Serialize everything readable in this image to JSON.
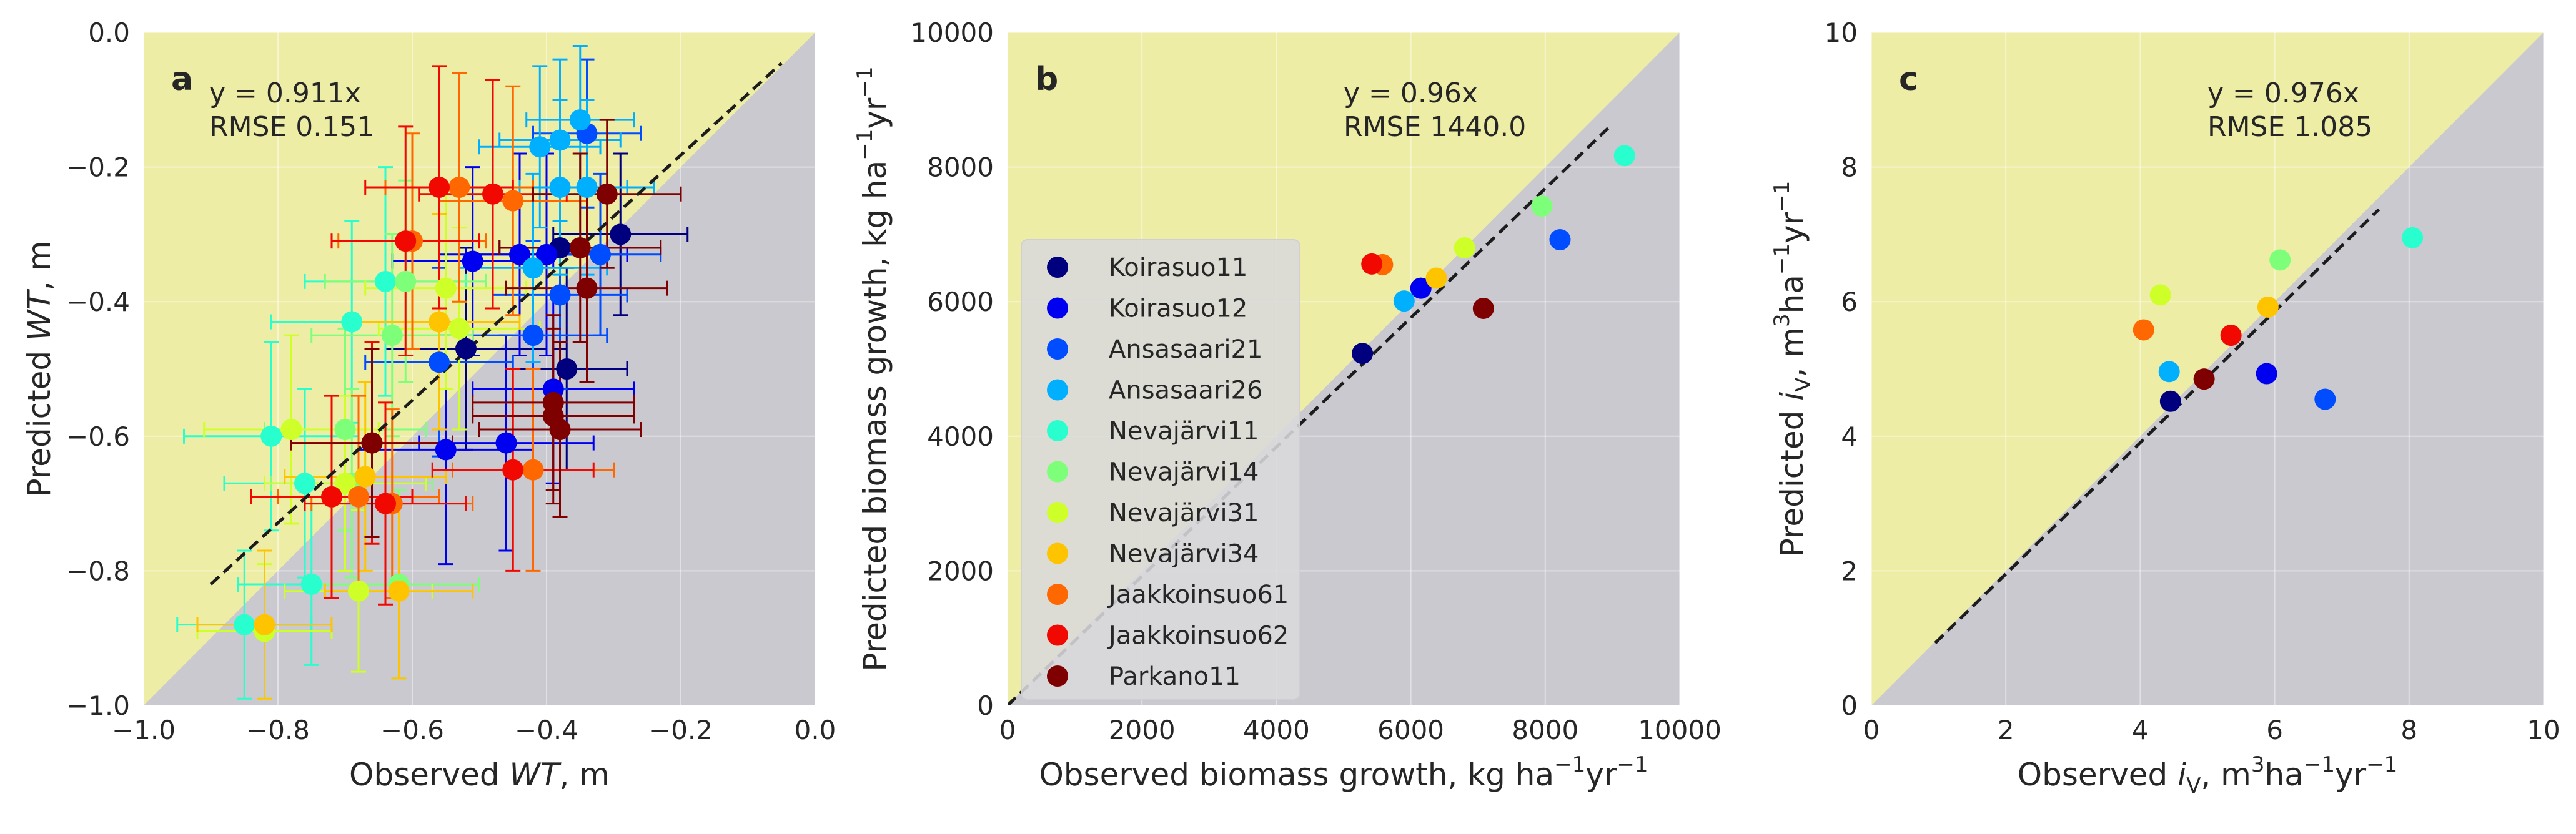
{
  "colors": {
    "face_above": "#eeeda6",
    "face_below": "#c9c9cf",
    "grid": "#ffffff",
    "fit_line": "#1c1c1c",
    "identity_line": "#ffffff"
  },
  "stand_colors": {
    "Koirasuo11": "#00007f",
    "Koirasuo12": "#0000f1",
    "Ansasaari21": "#004cff",
    "Ansasaari26": "#00b0ff",
    "Nevajärvi11": "#29ffce",
    "Nevajärvi14": "#7dff7a",
    "Nevajärvi31": "#ceff29",
    "Nevajärvi34": "#ffc400",
    "Jaakkoinsuo61": "#ff6800",
    "Jaakkoinsuo62": "#f10800",
    "Parkano11": "#7f0000"
  },
  "chart_data": [
    {
      "type": "scatter",
      "panel_label": "a",
      "xlabel_parts": [
        "Observed ",
        "WT",
        ", m"
      ],
      "ylabel_parts": [
        "Predicted ",
        "WT",
        ", m"
      ],
      "xlim": [
        -1.0,
        0.0
      ],
      "ylim": [
        -1.0,
        0.0
      ],
      "xticks": [
        -1.0,
        -0.8,
        -0.6,
        -0.4,
        -0.2,
        0.0
      ],
      "yticks": [
        -1.0,
        -0.8,
        -0.6,
        -0.4,
        -0.2,
        0.0
      ],
      "xtick_labels": [
        "−1.0",
        "−0.8",
        "−0.6",
        "−0.4",
        "−0.2",
        "0.0"
      ],
      "ytick_labels": [
        "−1.0",
        "−0.8",
        "−0.6",
        "−0.4",
        "−0.2",
        "0.0"
      ],
      "grid": true,
      "fit": {
        "slope": 0.911,
        "x_range": [
          -0.9,
          -0.05
        ]
      },
      "annotation": [
        "y = 0.911x",
        "RMSE 0.151"
      ],
      "points": [
        {
          "stand": "Koirasuo11",
          "x": -0.29,
          "y": -0.3,
          "xerr": 0.1,
          "yerr": 0.12
        },
        {
          "stand": "Koirasuo11",
          "x": -0.38,
          "y": -0.32,
          "xerr": 0.09,
          "yerr": 0.15
        },
        {
          "stand": "Koirasuo11",
          "x": -0.37,
          "y": -0.5,
          "xerr": 0.09,
          "yerr": 0.15
        },
        {
          "stand": "Koirasuo11",
          "x": -0.52,
          "y": -0.47,
          "xerr": 0.12,
          "yerr": 0.15
        },
        {
          "stand": "Koirasuo12",
          "x": -0.46,
          "y": -0.61,
          "xerr": 0.13,
          "yerr": 0.16
        },
        {
          "stand": "Koirasuo12",
          "x": -0.55,
          "y": -0.62,
          "xerr": 0.13,
          "yerr": 0.17
        },
        {
          "stand": "Koirasuo12",
          "x": -0.44,
          "y": -0.33,
          "xerr": 0.12,
          "yerr": 0.15
        },
        {
          "stand": "Koirasuo12",
          "x": -0.4,
          "y": -0.33,
          "xerr": 0.12,
          "yerr": 0.15
        },
        {
          "stand": "Koirasuo12",
          "x": -0.51,
          "y": -0.34,
          "xerr": 0.12,
          "yerr": 0.14
        },
        {
          "stand": "Koirasuo12",
          "x": -0.39,
          "y": -0.53,
          "xerr": 0.12,
          "yerr": 0.14
        },
        {
          "stand": "Ansasaari21",
          "x": -0.56,
          "y": -0.49,
          "xerr": 0.11,
          "yerr": 0.14
        },
        {
          "stand": "Ansasaari21",
          "x": -0.34,
          "y": -0.15,
          "xerr": 0.08,
          "yerr": 0.11
        },
        {
          "stand": "Ansasaari21",
          "x": -0.38,
          "y": -0.39,
          "xerr": 0.1,
          "yerr": 0.14
        },
        {
          "stand": "Ansasaari21",
          "x": -0.42,
          "y": -0.45,
          "xerr": 0.11,
          "yerr": 0.14
        },
        {
          "stand": "Ansasaari21",
          "x": -0.32,
          "y": -0.33,
          "xerr": 0.09,
          "yerr": 0.12
        },
        {
          "stand": "Ansasaari26",
          "x": -0.38,
          "y": -0.16,
          "xerr": 0.09,
          "yerr": 0.12
        },
        {
          "stand": "Ansasaari26",
          "x": -0.35,
          "y": -0.13,
          "xerr": 0.08,
          "yerr": 0.11
        },
        {
          "stand": "Ansasaari26",
          "x": -0.41,
          "y": -0.17,
          "xerr": 0.09,
          "yerr": 0.12
        },
        {
          "stand": "Ansasaari26",
          "x": -0.34,
          "y": -0.23,
          "xerr": 0.1,
          "yerr": 0.13
        },
        {
          "stand": "Ansasaari26",
          "x": -0.42,
          "y": -0.35,
          "xerr": 0.11,
          "yerr": 0.14
        },
        {
          "stand": "Ansasaari26",
          "x": -0.38,
          "y": -0.23,
          "xerr": 0.1,
          "yerr": 0.13
        },
        {
          "stand": "Nevajärvi11",
          "x": -0.81,
          "y": -0.6,
          "xerr": 0.13,
          "yerr": 0.14
        },
        {
          "stand": "Nevajärvi11",
          "x": -0.76,
          "y": -0.67,
          "xerr": 0.12,
          "yerr": 0.14
        },
        {
          "stand": "Nevajärvi11",
          "x": -0.75,
          "y": -0.82,
          "xerr": 0.11,
          "yerr": 0.12
        },
        {
          "stand": "Nevajärvi11",
          "x": -0.85,
          "y": -0.88,
          "xerr": 0.1,
          "yerr": 0.11
        },
        {
          "stand": "Nevajärvi11",
          "x": -0.69,
          "y": -0.43,
          "xerr": 0.12,
          "yerr": 0.15
        },
        {
          "stand": "Nevajärvi11",
          "x": -0.64,
          "y": -0.37,
          "xerr": 0.12,
          "yerr": 0.17
        },
        {
          "stand": "Nevajärvi14",
          "x": -0.7,
          "y": -0.59,
          "xerr": 0.12,
          "yerr": 0.15
        },
        {
          "stand": "Nevajärvi14",
          "x": -0.63,
          "y": -0.45,
          "xerr": 0.12,
          "yerr": 0.15
        },
        {
          "stand": "Nevajärvi14",
          "x": -0.61,
          "y": -0.37,
          "xerr": 0.12,
          "yerr": 0.15
        },
        {
          "stand": "Nevajärvi14",
          "x": -0.69,
          "y": -0.67,
          "xerr": 0.12,
          "yerr": 0.14
        },
        {
          "stand": "Nevajärvi14",
          "x": -0.62,
          "y": -0.82,
          "xerr": 0.12,
          "yerr": 0.14
        },
        {
          "stand": "Nevajärvi31",
          "x": -0.78,
          "y": -0.59,
          "xerr": 0.13,
          "yerr": 0.14
        },
        {
          "stand": "Nevajärvi31",
          "x": -0.82,
          "y": -0.89,
          "xerr": 0.1,
          "yerr": 0.1
        },
        {
          "stand": "Nevajärvi31",
          "x": -0.7,
          "y": -0.67,
          "xerr": 0.12,
          "yerr": 0.13
        },
        {
          "stand": "Nevajärvi31",
          "x": -0.55,
          "y": -0.38,
          "xerr": 0.12,
          "yerr": 0.15
        },
        {
          "stand": "Nevajärvi31",
          "x": -0.53,
          "y": -0.44,
          "xerr": 0.12,
          "yerr": 0.15
        },
        {
          "stand": "Nevajärvi31",
          "x": -0.68,
          "y": -0.83,
          "xerr": 0.11,
          "yerr": 0.12
        },
        {
          "stand": "Nevajärvi34",
          "x": -0.82,
          "y": -0.88,
          "xerr": 0.1,
          "yerr": 0.11
        },
        {
          "stand": "Nevajärvi34",
          "x": -0.67,
          "y": -0.66,
          "xerr": 0.12,
          "yerr": 0.14
        },
        {
          "stand": "Nevajärvi34",
          "x": -0.62,
          "y": -0.83,
          "xerr": 0.11,
          "yerr": 0.13
        },
        {
          "stand": "Nevajärvi34",
          "x": -0.53,
          "y": -0.23,
          "xerr": 0.11,
          "yerr": 0.17
        },
        {
          "stand": "Nevajärvi34",
          "x": -0.56,
          "y": -0.43,
          "xerr": 0.12,
          "yerr": 0.16
        },
        {
          "stand": "Jaakkoinsuo61",
          "x": -0.6,
          "y": -0.31,
          "xerr": 0.11,
          "yerr": 0.16
        },
        {
          "stand": "Jaakkoinsuo61",
          "x": -0.53,
          "y": -0.23,
          "xerr": 0.11,
          "yerr": 0.17
        },
        {
          "stand": "Jaakkoinsuo61",
          "x": -0.68,
          "y": -0.69,
          "xerr": 0.12,
          "yerr": 0.15
        },
        {
          "stand": "Jaakkoinsuo61",
          "x": -0.63,
          "y": -0.7,
          "xerr": 0.12,
          "yerr": 0.14
        },
        {
          "stand": "Jaakkoinsuo61",
          "x": -0.42,
          "y": -0.65,
          "xerr": 0.12,
          "yerr": 0.15
        },
        {
          "stand": "Jaakkoinsuo61",
          "x": -0.45,
          "y": -0.25,
          "xerr": 0.11,
          "yerr": 0.17
        },
        {
          "stand": "Jaakkoinsuo62",
          "x": -0.61,
          "y": -0.31,
          "xerr": 0.11,
          "yerr": 0.17
        },
        {
          "stand": "Jaakkoinsuo62",
          "x": -0.56,
          "y": -0.23,
          "xerr": 0.11,
          "yerr": 0.18
        },
        {
          "stand": "Jaakkoinsuo62",
          "x": -0.72,
          "y": -0.69,
          "xerr": 0.12,
          "yerr": 0.15
        },
        {
          "stand": "Jaakkoinsuo62",
          "x": -0.64,
          "y": -0.7,
          "xerr": 0.12,
          "yerr": 0.15
        },
        {
          "stand": "Jaakkoinsuo62",
          "x": -0.66,
          "y": -0.61,
          "xerr": 0.12,
          "yerr": 0.15
        },
        {
          "stand": "Jaakkoinsuo62",
          "x": -0.48,
          "y": -0.24,
          "xerr": 0.11,
          "yerr": 0.17
        },
        {
          "stand": "Jaakkoinsuo62",
          "x": -0.45,
          "y": -0.65,
          "xerr": 0.12,
          "yerr": 0.15
        },
        {
          "stand": "Parkano11",
          "x": -0.31,
          "y": -0.24,
          "xerr": 0.11,
          "yerr": 0.11
        },
        {
          "stand": "Parkano11",
          "x": -0.34,
          "y": -0.38,
          "xerr": 0.12,
          "yerr": 0.14
        },
        {
          "stand": "Parkano11",
          "x": -0.39,
          "y": -0.55,
          "xerr": 0.12,
          "yerr": 0.13
        },
        {
          "stand": "Parkano11",
          "x": -0.38,
          "y": -0.59,
          "xerr": 0.12,
          "yerr": 0.13
        },
        {
          "stand": "Parkano11",
          "x": -0.39,
          "y": -0.57,
          "xerr": 0.12,
          "yerr": 0.13
        },
        {
          "stand": "Parkano11",
          "x": -0.35,
          "y": -0.32,
          "xerr": 0.12,
          "yerr": 0.14
        },
        {
          "stand": "Parkano11",
          "x": -0.66,
          "y": -0.61,
          "xerr": 0.12,
          "yerr": 0.14
        }
      ]
    },
    {
      "type": "scatter",
      "panel_label": "b",
      "xlabel_parts": [
        "Observed biomass growth, kg ha",
        "−1",
        "yr",
        "−1"
      ],
      "ylabel_parts": [
        "Predicted biomass growth, kg ha",
        "−1",
        "yr",
        "−1"
      ],
      "xlim": [
        0,
        10000
      ],
      "ylim": [
        0,
        10000
      ],
      "xticks": [
        0,
        2000,
        4000,
        6000,
        8000,
        10000
      ],
      "yticks": [
        0,
        2000,
        4000,
        6000,
        8000,
        10000
      ],
      "xtick_labels": [
        "0",
        "2000",
        "4000",
        "6000",
        "8000",
        "10000"
      ],
      "ytick_labels": [
        "0",
        "2000",
        "4000",
        "6000",
        "8000",
        "10000"
      ],
      "grid": true,
      "fit": {
        "slope": 0.96,
        "x_range": [
          0,
          8950
        ]
      },
      "annotation": [
        "y = 0.96x",
        "RMSE 1440.0"
      ],
      "legend": {
        "placement": "lower-left",
        "entries": [
          "Koirasuo11",
          "Koirasuo12",
          "Ansasaari21",
          "Ansasaari26",
          "Nevajärvi11",
          "Nevajärvi14",
          "Nevajärvi31",
          "Nevajärvi34",
          "Jaakkoinsuo61",
          "Jaakkoinsuo62",
          "Parkano11"
        ]
      },
      "points": [
        {
          "stand": "Koirasuo11",
          "x": 5280,
          "y": 5230
        },
        {
          "stand": "Koirasuo12",
          "x": 6150,
          "y": 6200
        },
        {
          "stand": "Ansasaari21",
          "x": 8220,
          "y": 6920
        },
        {
          "stand": "Ansasaari26",
          "x": 5900,
          "y": 6010
        },
        {
          "stand": "Nevajärvi11",
          "x": 9180,
          "y": 8170
        },
        {
          "stand": "Nevajärvi14",
          "x": 7950,
          "y": 7420
        },
        {
          "stand": "Nevajärvi31",
          "x": 6800,
          "y": 6800
        },
        {
          "stand": "Nevajärvi34",
          "x": 6380,
          "y": 6350
        },
        {
          "stand": "Jaakkoinsuo61",
          "x": 5580,
          "y": 6550
        },
        {
          "stand": "Jaakkoinsuo62",
          "x": 5420,
          "y": 6560
        },
        {
          "stand": "Parkano11",
          "x": 7080,
          "y": 5900
        }
      ]
    },
    {
      "type": "scatter",
      "panel_label": "c",
      "xlabel_parts": [
        "Observed ",
        "i",
        "V",
        ", m",
        "3",
        "ha",
        "−1",
        "yr",
        "−1"
      ],
      "ylabel_parts": [
        "Predicted ",
        "i",
        "V",
        ", m",
        "3",
        "ha",
        "−1",
        "yr",
        "−1"
      ],
      "xlim": [
        0,
        10
      ],
      "ylim": [
        0,
        10
      ],
      "xticks": [
        0,
        2,
        4,
        6,
        8,
        10
      ],
      "yticks": [
        0,
        2,
        4,
        6,
        8,
        10
      ],
      "xtick_labels": [
        "0",
        "2",
        "4",
        "6",
        "8",
        "10"
      ],
      "ytick_labels": [
        "0",
        "2",
        "4",
        "6",
        "8",
        "10"
      ],
      "grid": true,
      "fit": {
        "slope": 0.976,
        "x_range": [
          0.95,
          7.55
        ]
      },
      "annotation": [
        "y = 0.976x",
        "RMSE 1.085"
      ],
      "points": [
        {
          "stand": "Koirasuo11",
          "x": 4.45,
          "y": 4.52
        },
        {
          "stand": "Koirasuo12",
          "x": 5.88,
          "y": 4.93
        },
        {
          "stand": "Ansasaari21",
          "x": 6.75,
          "y": 4.55
        },
        {
          "stand": "Ansasaari26",
          "x": 4.43,
          "y": 4.96
        },
        {
          "stand": "Nevajärvi11",
          "x": 8.05,
          "y": 6.95
        },
        {
          "stand": "Nevajärvi14",
          "x": 6.08,
          "y": 6.62
        },
        {
          "stand": "Nevajärvi31",
          "x": 4.3,
          "y": 6.1
        },
        {
          "stand": "Nevajärvi34",
          "x": 5.9,
          "y": 5.92
        },
        {
          "stand": "Jaakkoinsuo61",
          "x": 4.05,
          "y": 5.58
        },
        {
          "stand": "Jaakkoinsuo62",
          "x": 5.35,
          "y": 5.5
        },
        {
          "stand": "Parkano11",
          "x": 4.95,
          "y": 4.85
        }
      ]
    }
  ]
}
